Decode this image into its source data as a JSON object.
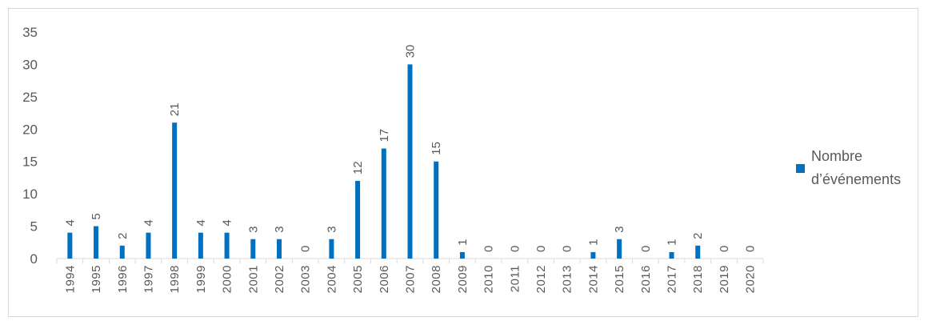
{
  "chart_data": {
    "type": "bar",
    "categories": [
      "1994",
      "1995",
      "1996",
      "1997",
      "1998",
      "1999",
      "2000",
      "2001",
      "2002",
      "2003",
      "2004",
      "2005",
      "2006",
      "2007",
      "2008",
      "2009",
      "2010",
      "2011",
      "2012",
      "2013",
      "2014",
      "2015",
      "2016",
      "2017",
      "2018",
      "2019",
      "2020"
    ],
    "series": [
      {
        "name": "Nombre d’événements",
        "values": [
          4,
          5,
          2,
          4,
          21,
          4,
          4,
          3,
          3,
          0,
          3,
          12,
          17,
          30,
          15,
          1,
          0,
          0,
          0,
          0,
          1,
          3,
          0,
          1,
          2,
          0,
          0
        ],
        "color": "#0070c0"
      }
    ],
    "data_labels": [
      "4",
      "5",
      "2",
      "4",
      "21",
      "4",
      "4",
      "3",
      "3",
      "0",
      "3",
      "12",
      "17",
      "30",
      "15",
      "1",
      "0",
      "0",
      "0",
      "0",
      "1",
      "3",
      "0",
      "1",
      "2",
      "0",
      "0"
    ],
    "yticks": [
      "0",
      "5",
      "10",
      "15",
      "20",
      "25",
      "30",
      "35"
    ],
    "ylim": [
      0,
      35
    ],
    "legend": {
      "line1": "Nombre",
      "line2": "d’événements",
      "position": "right"
    },
    "title": "",
    "xlabel": "",
    "ylabel": "",
    "grid": false
  }
}
